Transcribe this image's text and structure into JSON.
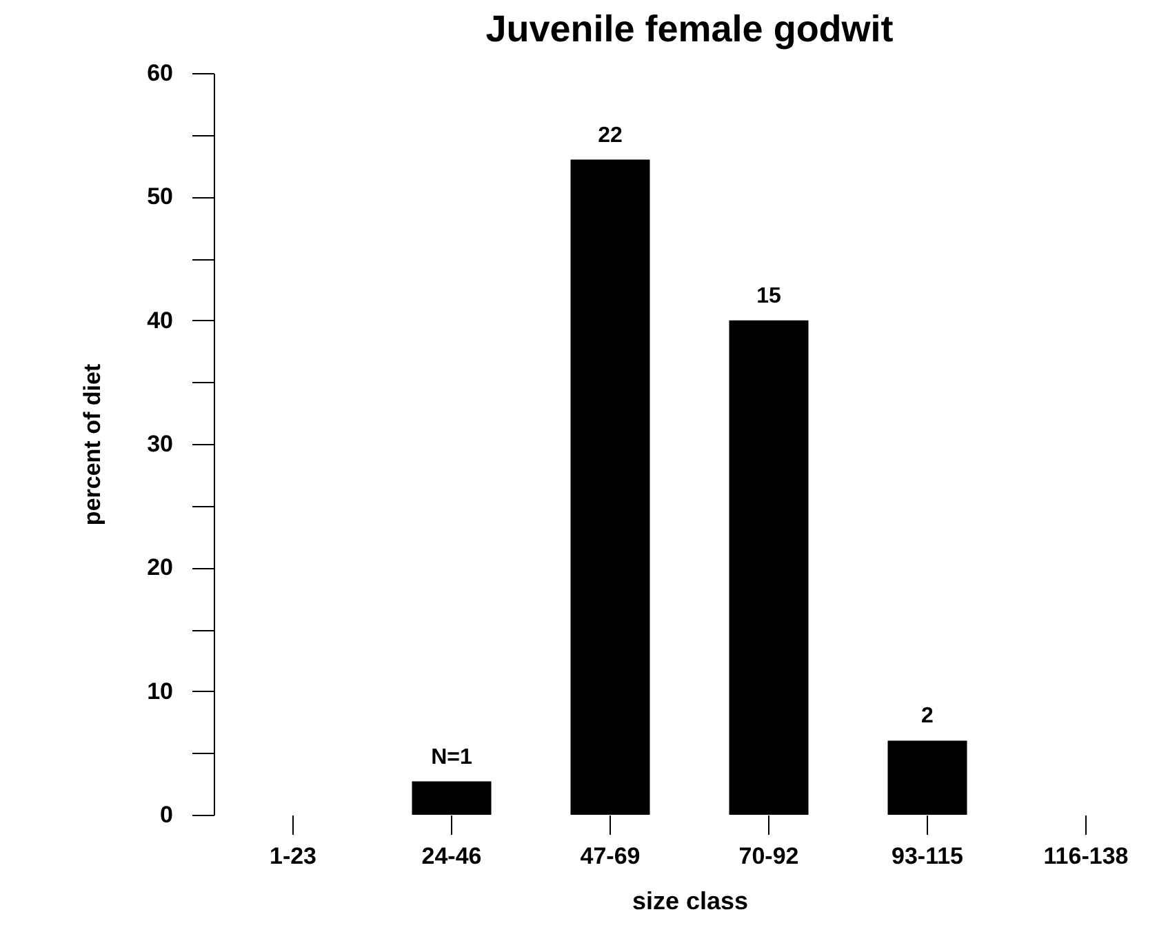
{
  "chart_data": {
    "type": "bar",
    "title": "Juvenile female godwit",
    "xlabel": "size class",
    "ylabel": "percent of diet",
    "categories": [
      "1-23",
      "24-46",
      "47-69",
      "70-92",
      "93-115",
      "116-138"
    ],
    "values": [
      0,
      2.7,
      53,
      40,
      6,
      0
    ],
    "annotations": [
      {
        "text": "N=1",
        "x": "24-46",
        "y": 2.7
      },
      {
        "text": "22",
        "x": "47-69",
        "y": 53
      },
      {
        "text": "15",
        "x": "70-92",
        "y": 40
      },
      {
        "text": "2",
        "x": "93-115",
        "y": 6
      }
    ],
    "color": "#000000",
    "ylim": [
      0,
      60
    ],
    "yticks": [
      0,
      {
        "value": 5,
        "label": null
      },
      10,
      {
        "value": 15,
        "label": null
      },
      20,
      {
        "value": 25,
        "label": null
      },
      30,
      {
        "value": 35,
        "label": null
      },
      40,
      {
        "value": 45,
        "label": null
      },
      50,
      {
        "value": 55,
        "label": null
      },
      60
    ],
    "grid": false
  }
}
